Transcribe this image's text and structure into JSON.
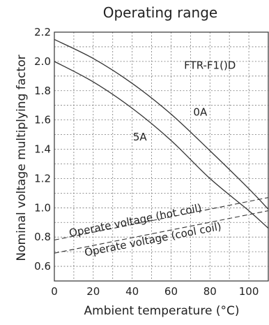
{
  "chart_data": {
    "type": "line",
    "title": "Operating range",
    "xlabel": "Ambient temperature (°C)",
    "ylabel": "Nominal voltage multiplying factor",
    "xlim": [
      0,
      110
    ],
    "ylim": [
      0.5,
      2.2
    ],
    "x_ticks": [
      0,
      20,
      40,
      60,
      80,
      100
    ],
    "y_ticks": [
      0.6,
      0.8,
      1.0,
      1.2,
      1.4,
      1.6,
      1.8,
      2.0,
      2.2
    ],
    "x_tick_labels": [
      "0",
      "20",
      "40",
      "60",
      "80",
      "100"
    ],
    "y_tick_labels": [
      "0.6",
      "0.8",
      "1.0",
      "1.2",
      "1.4",
      "1.6",
      "1.8",
      "2.0",
      "2.2"
    ],
    "grid": true,
    "series": [
      {
        "name": "0A",
        "style": "solid",
        "x": [
          0,
          20,
          40,
          60,
          80,
          100,
          110
        ],
        "y": [
          2.15,
          2.02,
          1.85,
          1.64,
          1.39,
          1.13,
          0.99
        ]
      },
      {
        "name": "5A",
        "style": "solid",
        "x": [
          0,
          20,
          40,
          60,
          80,
          100,
          110
        ],
        "y": [
          2.0,
          1.86,
          1.68,
          1.46,
          1.2,
          0.98,
          0.86
        ]
      },
      {
        "name": "Operate voltage (hot coil)",
        "style": "dashed",
        "x": [
          0,
          110
        ],
        "y": [
          0.78,
          1.07
        ]
      },
      {
        "name": "Operate voltage (cool coil)",
        "style": "dashed",
        "x": [
          0,
          110
        ],
        "y": [
          0.69,
          0.98
        ]
      }
    ],
    "annotations": [
      {
        "text": "FTR-F1()D",
        "x": 80,
        "y": 1.95
      },
      {
        "text": "0A",
        "x": 75,
        "y": 1.63
      },
      {
        "text": "5A",
        "x": 44,
        "y": 1.46
      },
      {
        "text": "Operate voltage (hot coil)",
        "x": 42,
        "y": 0.89,
        "rotate": -11
      },
      {
        "text": "Operate voltage (cool coil)",
        "x": 51,
        "y": 0.76,
        "rotate": -11
      }
    ]
  }
}
